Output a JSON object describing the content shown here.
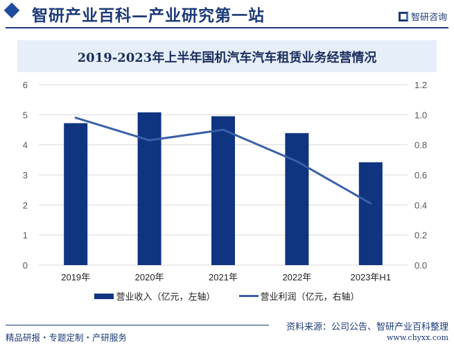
{
  "header": {
    "title": "智研产业百科—产业研究第一站",
    "logo_text": "智研咨询"
  },
  "chart_data": {
    "type": "bar+line",
    "title": "2019-2023年上半年国机汽车汽车租赁业务经营情况",
    "categories": [
      "2019年",
      "2020年",
      "2021年",
      "2022年",
      "2023年H1"
    ],
    "series": [
      {
        "name": "营业收入（亿元，左轴）",
        "type": "bar",
        "axis": "left",
        "color": "#0f3480",
        "values": [
          4.72,
          5.08,
          4.95,
          4.39,
          3.42
        ]
      },
      {
        "name": "营业利润（亿元，右轴）",
        "type": "line",
        "axis": "right",
        "color": "#3a5fa8",
        "values": [
          0.98,
          0.83,
          0.9,
          0.69,
          0.41
        ]
      }
    ],
    "y_left": {
      "ticks": [
        "0",
        "1",
        "2",
        "3",
        "4",
        "5",
        "6"
      ],
      "range": [
        0,
        6
      ]
    },
    "y_right": {
      "ticks": [
        "0.0",
        "0.2",
        "0.4",
        "0.6",
        "0.8",
        "1.0",
        "1.2"
      ],
      "range": [
        0,
        1.2
      ]
    },
    "grid": true,
    "legend": "bottom"
  },
  "footer": {
    "left": "精品研报・专题定制・产研服务",
    "source": "资料来源：公司公告、智研产业百科整理",
    "url": "www.chyxx.com"
  }
}
